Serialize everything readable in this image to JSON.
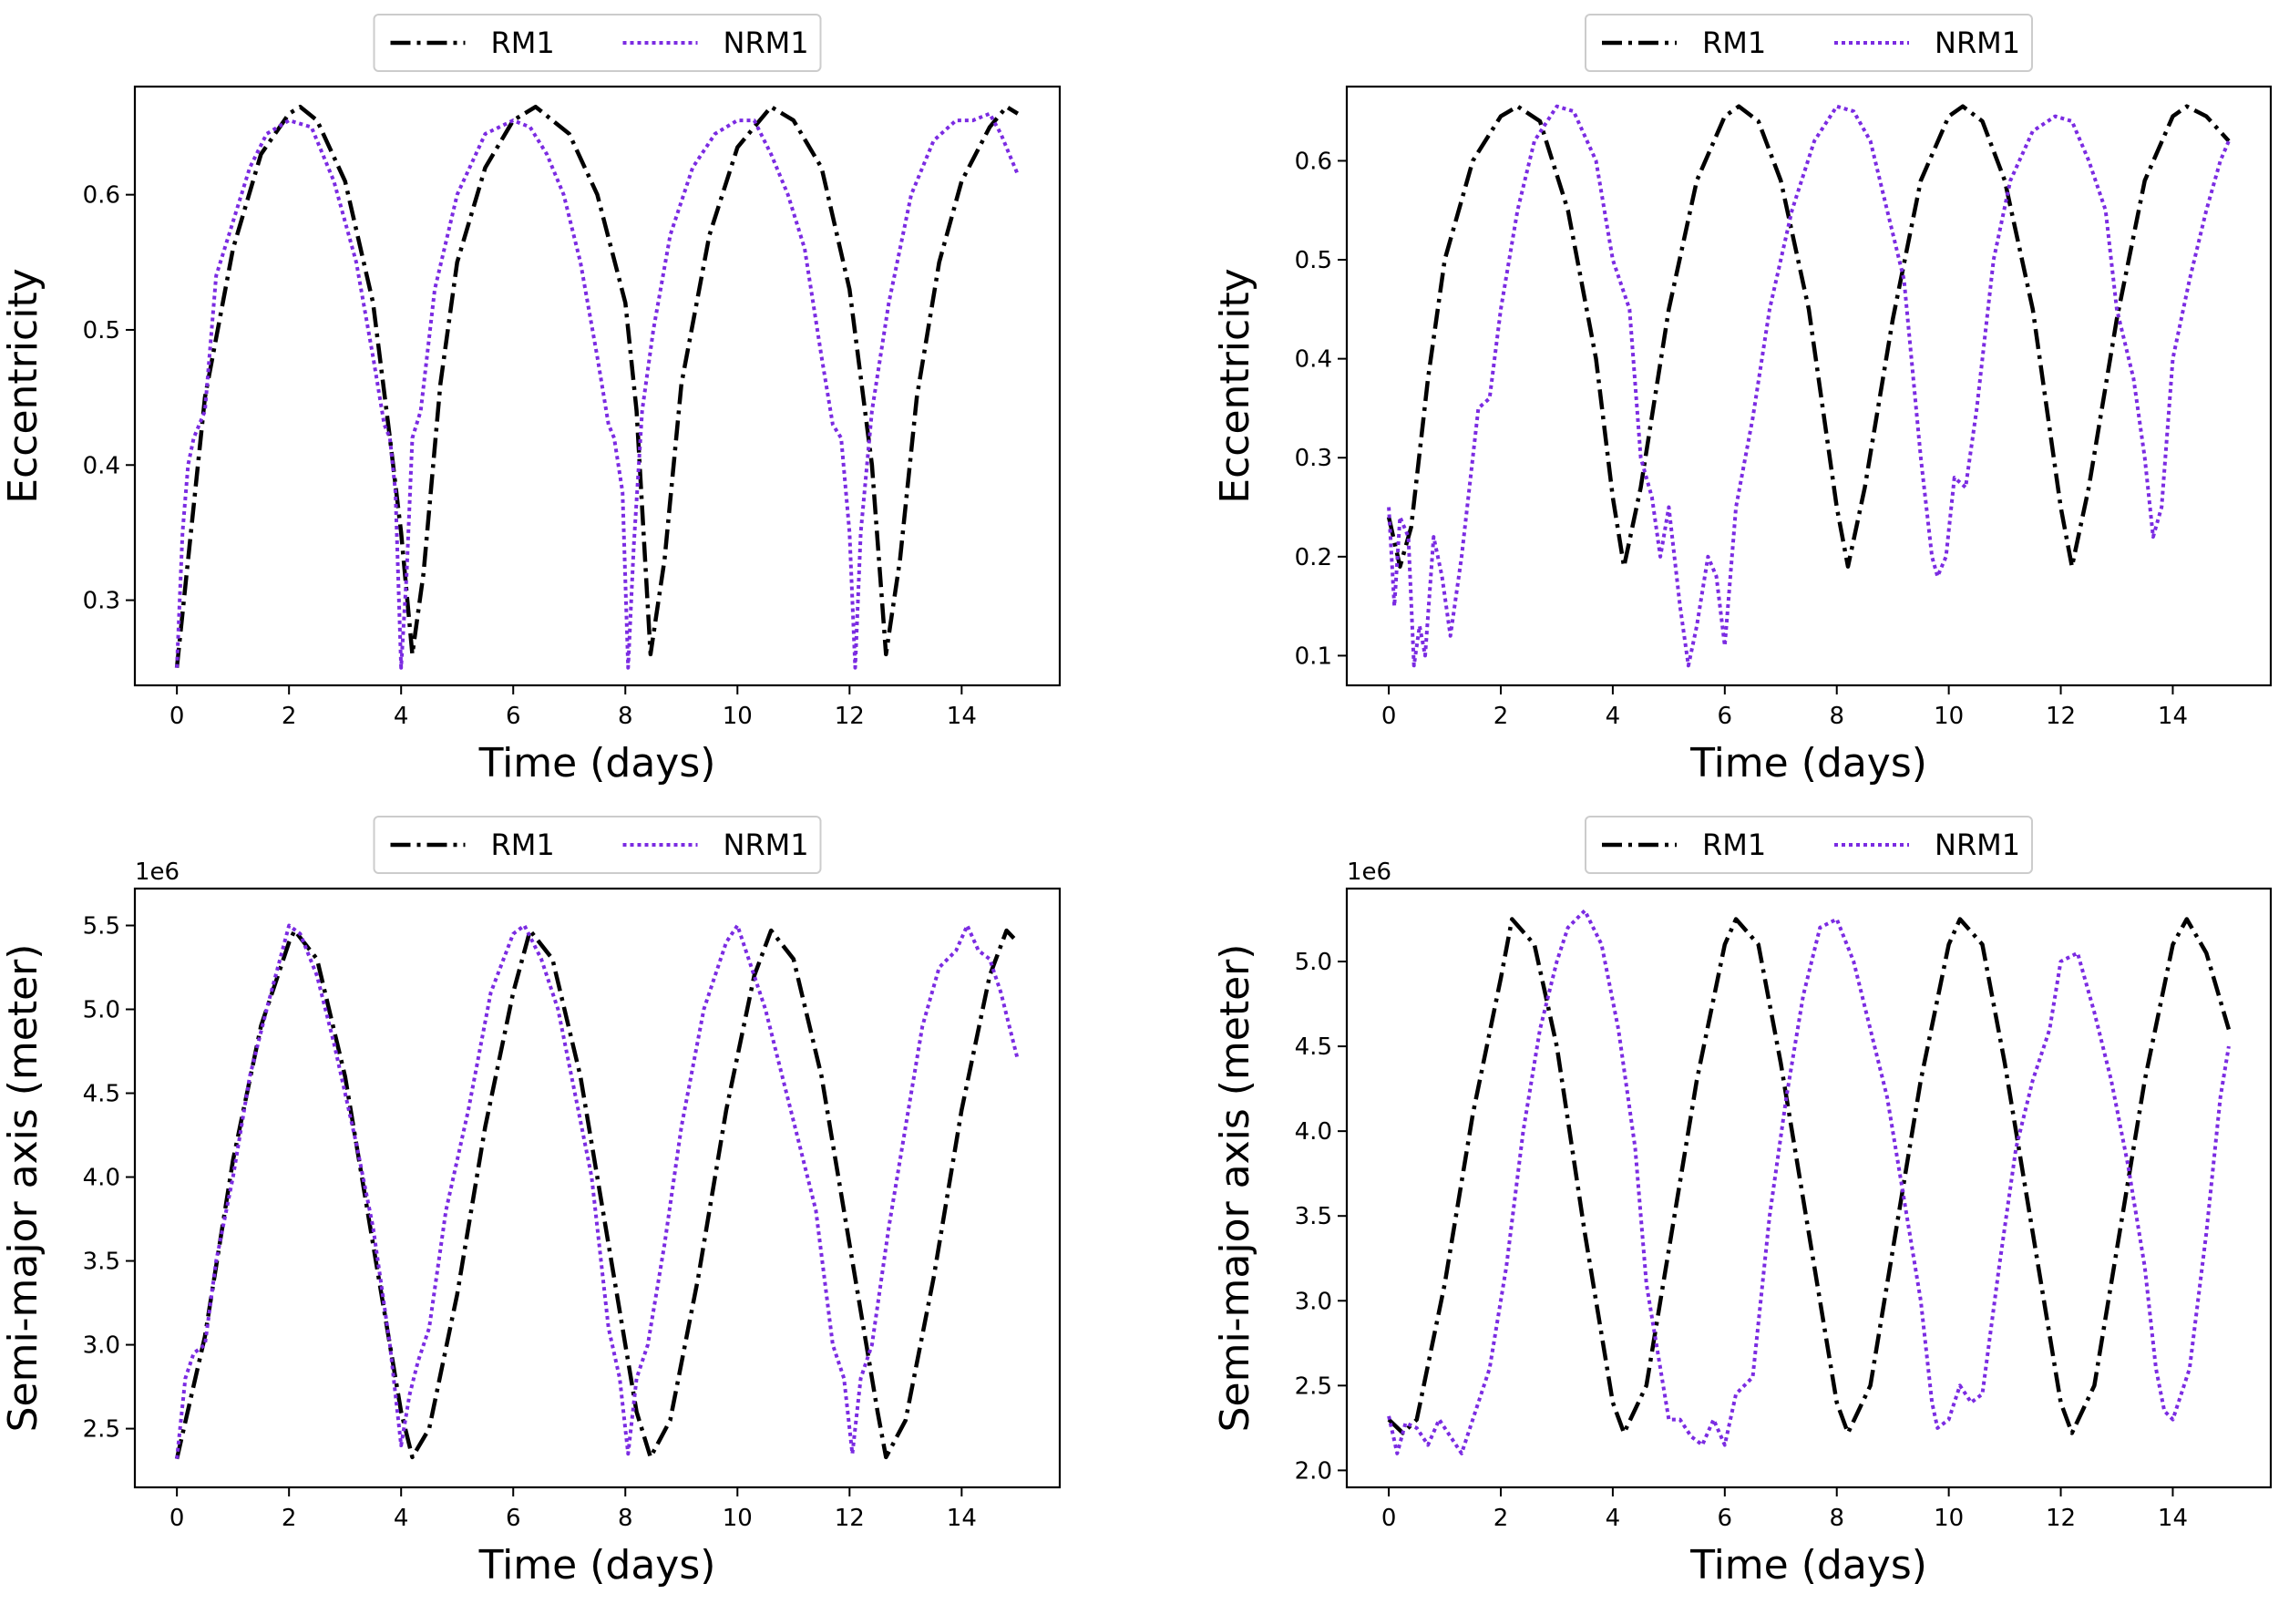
{
  "chart_data": [
    {
      "type": "line",
      "panel": "top-left",
      "xlabel": "Time (days)",
      "ylabel": "Eccentricity",
      "offset_text": "",
      "xlim": [
        -0.75,
        15.75
      ],
      "ylim": [
        0.237,
        0.68
      ],
      "xticks": [
        0,
        2,
        4,
        6,
        8,
        10,
        12,
        14
      ],
      "yticks": [
        0.3,
        0.4,
        0.5,
        0.6
      ],
      "ytick_labels": [
        "0.3",
        "0.4",
        "0.5",
        "0.6"
      ],
      "legend": {
        "position": "top-center-outside",
        "entries": [
          "RM1",
          "NRM1"
        ]
      },
      "series": [
        {
          "name": "RM1",
          "color": "#000000",
          "style": "dashdot",
          "x": [
            0,
            0.5,
            1,
            1.5,
            2,
            2.2,
            2.5,
            3,
            3.5,
            3.8,
            4,
            4.2,
            4.4,
            4.7,
            5,
            5.5,
            6,
            6.4,
            7,
            7.5,
            8,
            8.2,
            8.45,
            8.7,
            9,
            9.5,
            10,
            10.6,
            11,
            11.5,
            12,
            12.4,
            12.65,
            12.9,
            13.2,
            13.6,
            14,
            14.5,
            14.8,
            15
          ],
          "y": [
            0.25,
            0.45,
            0.56,
            0.63,
            0.66,
            0.665,
            0.655,
            0.61,
            0.52,
            0.42,
            0.35,
            0.26,
            0.32,
            0.46,
            0.55,
            0.62,
            0.655,
            0.665,
            0.645,
            0.6,
            0.52,
            0.44,
            0.26,
            0.33,
            0.46,
            0.57,
            0.635,
            0.665,
            0.655,
            0.62,
            0.53,
            0.4,
            0.26,
            0.33,
            0.45,
            0.55,
            0.61,
            0.65,
            0.665,
            0.66
          ]
        },
        {
          "name": "NRM1",
          "color": "#7b2be2",
          "style": "dotted",
          "x": [
            0,
            0.1,
            0.2,
            0.3,
            0.5,
            0.7,
            1,
            1.3,
            1.6,
            2,
            2.4,
            2.8,
            3.2,
            3.5,
            3.7,
            3.8,
            3.9,
            4,
            4.1,
            4.2,
            4.35,
            4.6,
            5,
            5.5,
            6,
            6.3,
            6.6,
            6.9,
            7.2,
            7.5,
            7.7,
            7.8,
            7.95,
            8.05,
            8.15,
            8.3,
            8.5,
            8.8,
            9.2,
            9.6,
            10,
            10.3,
            10.6,
            10.9,
            11.2,
            11.5,
            11.7,
            11.85,
            12,
            12.1,
            12.2,
            12.4,
            12.7,
            13.1,
            13.5,
            13.9,
            14.2,
            14.5,
            14.7,
            14.85,
            15
          ],
          "y": [
            0.25,
            0.35,
            0.4,
            0.42,
            0.44,
            0.54,
            0.58,
            0.62,
            0.645,
            0.655,
            0.65,
            0.61,
            0.55,
            0.48,
            0.43,
            0.42,
            0.38,
            0.25,
            0.32,
            0.42,
            0.44,
            0.53,
            0.6,
            0.645,
            0.655,
            0.65,
            0.63,
            0.6,
            0.55,
            0.48,
            0.43,
            0.42,
            0.38,
            0.25,
            0.34,
            0.44,
            0.5,
            0.57,
            0.62,
            0.645,
            0.655,
            0.655,
            0.63,
            0.6,
            0.56,
            0.48,
            0.43,
            0.42,
            0.35,
            0.25,
            0.35,
            0.44,
            0.52,
            0.6,
            0.64,
            0.655,
            0.655,
            0.66,
            0.645,
            0.63,
            0.615
          ]
        }
      ]
    },
    {
      "type": "line",
      "panel": "top-right",
      "xlabel": "Time (days)",
      "ylabel": "Eccentricity",
      "offset_text": "",
      "xlim": [
        -0.75,
        15.75
      ],
      "ylim": [
        0.07,
        0.675
      ],
      "xticks": [
        0,
        2,
        4,
        6,
        8,
        10,
        12,
        14
      ],
      "yticks": [
        0.1,
        0.2,
        0.3,
        0.4,
        0.5,
        0.6
      ],
      "ytick_labels": [
        "0.1",
        "0.2",
        "0.3",
        "0.4",
        "0.5",
        "0.6"
      ],
      "legend": {
        "position": "top-center-outside",
        "entries": [
          "RM1",
          "NRM1"
        ]
      },
      "series": [
        {
          "name": "RM1",
          "color": "#000000",
          "style": "dashdot",
          "x": [
            0,
            0.2,
            0.4,
            0.7,
            1,
            1.5,
            2,
            2.3,
            2.7,
            3.2,
            3.7,
            4,
            4.2,
            4.5,
            5,
            5.5,
            6,
            6.25,
            6.6,
            7,
            7.5,
            8,
            8.2,
            8.5,
            9,
            9.5,
            10,
            10.25,
            10.6,
            11,
            11.5,
            12,
            12.2,
            12.5,
            13,
            13.5,
            14,
            14.25,
            14.6,
            15
          ],
          "y": [
            0.24,
            0.19,
            0.23,
            0.38,
            0.5,
            0.6,
            0.645,
            0.655,
            0.64,
            0.55,
            0.4,
            0.26,
            0.19,
            0.27,
            0.45,
            0.58,
            0.645,
            0.655,
            0.64,
            0.58,
            0.45,
            0.25,
            0.19,
            0.27,
            0.44,
            0.58,
            0.645,
            0.655,
            0.64,
            0.58,
            0.45,
            0.25,
            0.19,
            0.27,
            0.44,
            0.58,
            0.645,
            0.655,
            0.645,
            0.62
          ]
        },
        {
          "name": "NRM1",
          "color": "#7b2be2",
          "style": "dotted",
          "x": [
            0,
            0.1,
            0.2,
            0.35,
            0.45,
            0.55,
            0.65,
            0.8,
            0.95,
            1.1,
            1.3,
            1.6,
            1.8,
            2.0,
            2.3,
            2.6,
            3.0,
            3.3,
            3.7,
            4.0,
            4.3,
            4.5,
            4.7,
            4.85,
            5.0,
            5.2,
            5.35,
            5.5,
            5.7,
            5.85,
            6.0,
            6.2,
            6.5,
            6.8,
            7.2,
            7.6,
            8.0,
            8.3,
            8.6,
            8.9,
            9.2,
            9.5,
            9.7,
            9.8,
            9.95,
            10.1,
            10.3,
            10.5,
            10.8,
            11.1,
            11.5,
            11.9,
            12.2,
            12.5,
            12.8,
            13.0,
            13.3,
            13.5,
            13.65,
            13.8,
            14.0,
            14.3,
            14.6,
            14.85,
            15.0
          ],
          "y": [
            0.25,
            0.15,
            0.24,
            0.22,
            0.09,
            0.13,
            0.1,
            0.22,
            0.18,
            0.12,
            0.2,
            0.35,
            0.36,
            0.45,
            0.55,
            0.62,
            0.655,
            0.65,
            0.6,
            0.5,
            0.45,
            0.3,
            0.26,
            0.2,
            0.25,
            0.15,
            0.09,
            0.13,
            0.2,
            0.18,
            0.11,
            0.25,
            0.34,
            0.45,
            0.55,
            0.62,
            0.655,
            0.65,
            0.62,
            0.55,
            0.48,
            0.3,
            0.2,
            0.18,
            0.2,
            0.28,
            0.27,
            0.35,
            0.5,
            0.58,
            0.63,
            0.645,
            0.64,
            0.6,
            0.55,
            0.45,
            0.38,
            0.3,
            0.22,
            0.25,
            0.4,
            0.48,
            0.55,
            0.6,
            0.62
          ]
        }
      ]
    },
    {
      "type": "line",
      "panel": "bottom-left",
      "xlabel": "Time (days)",
      "ylabel": "Semi-major axis (meter)",
      "offset_text": "1e6",
      "xlim": [
        -0.75,
        15.75
      ],
      "ylim": [
        2.15,
        5.72
      ],
      "xticks": [
        0,
        2,
        4,
        6,
        8,
        10,
        12,
        14
      ],
      "yticks": [
        2.5,
        3.0,
        3.5,
        4.0,
        4.5,
        5.0,
        5.5
      ],
      "ytick_labels": [
        "2.5",
        "3.0",
        "3.5",
        "4.0",
        "4.5",
        "5.0",
        "5.5"
      ],
      "legend": {
        "position": "top-center-outside",
        "entries": [
          "RM1",
          "NRM1"
        ]
      },
      "series": [
        {
          "name": "RM1",
          "color": "#000000",
          "style": "dashdot",
          "x": [
            0,
            0.5,
            1,
            1.5,
            2,
            2.1,
            2.5,
            3,
            3.5,
            4,
            4.2,
            4.5,
            5,
            5.5,
            6,
            6.3,
            6.7,
            7.2,
            7.7,
            8.2,
            8.45,
            8.8,
            9.3,
            9.8,
            10.3,
            10.6,
            11,
            11.5,
            12,
            12.5,
            12.65,
            13,
            13.5,
            14,
            14.5,
            14.8,
            15
          ],
          "y": [
            2.32,
            3.05,
            4.1,
            4.9,
            5.4,
            5.47,
            5.3,
            4.6,
            3.6,
            2.6,
            2.33,
            2.5,
            3.3,
            4.3,
            5.1,
            5.47,
            5.3,
            4.6,
            3.6,
            2.6,
            2.33,
            2.55,
            3.4,
            4.4,
            5.2,
            5.47,
            5.3,
            4.6,
            3.6,
            2.6,
            2.33,
            2.55,
            3.4,
            4.4,
            5.2,
            5.47,
            5.4
          ]
        },
        {
          "name": "NRM1",
          "color": "#7b2be2",
          "style": "dotted",
          "x": [
            0,
            0.15,
            0.3,
            0.5,
            0.7,
            1.0,
            1.3,
            1.6,
            2.0,
            2.2,
            2.5,
            2.8,
            3.2,
            3.5,
            3.8,
            4.0,
            4.15,
            4.3,
            4.5,
            4.8,
            5.2,
            5.6,
            6.0,
            6.2,
            6.5,
            6.8,
            7.1,
            7.4,
            7.7,
            7.9,
            8.05,
            8.2,
            8.4,
            8.7,
            9.0,
            9.4,
            9.8,
            10.0,
            10.2,
            10.5,
            10.8,
            11.1,
            11.4,
            11.7,
            11.9,
            12.05,
            12.2,
            12.4,
            12.7,
            13.0,
            13.3,
            13.6,
            13.9,
            14.1,
            14.3,
            14.5,
            14.7,
            14.85,
            15.0
          ],
          "y": [
            2.32,
            2.8,
            2.95,
            3.0,
            3.5,
            4.0,
            4.6,
            5.0,
            5.5,
            5.45,
            5.2,
            4.8,
            4.2,
            3.7,
            3.0,
            2.4,
            2.7,
            2.9,
            3.1,
            3.8,
            4.4,
            5.1,
            5.45,
            5.5,
            5.3,
            5.0,
            4.5,
            4.0,
            3.1,
            2.8,
            2.35,
            2.8,
            3.0,
            3.6,
            4.3,
            5.0,
            5.4,
            5.5,
            5.3,
            5.0,
            4.6,
            4.2,
            3.8,
            3.0,
            2.8,
            2.35,
            2.8,
            3.0,
            3.7,
            4.3,
            4.9,
            5.25,
            5.35,
            5.5,
            5.35,
            5.3,
            5.1,
            4.9,
            4.7
          ]
        }
      ]
    },
    {
      "type": "line",
      "panel": "bottom-right",
      "xlabel": "Time (days)",
      "ylabel": "Semi-major axis (meter)",
      "offset_text": "1e6",
      "xlim": [
        -0.75,
        15.75
      ],
      "ylim": [
        1.9,
        5.43
      ],
      "xticks": [
        0,
        2,
        4,
        6,
        8,
        10,
        12,
        14
      ],
      "yticks": [
        2.0,
        2.5,
        3.0,
        3.5,
        4.0,
        4.5,
        5.0
      ],
      "ytick_labels": [
        "2.0",
        "2.5",
        "3.0",
        "3.5",
        "4.0",
        "4.5",
        "5.0"
      ],
      "legend": {
        "position": "top-center-outside",
        "entries": [
          "RM1",
          "NRM1"
        ]
      },
      "series": [
        {
          "name": "RM1",
          "color": "#000000",
          "style": "dashdot",
          "x": [
            0,
            0.25,
            0.5,
            1,
            1.5,
            2,
            2.2,
            2.6,
            3,
            3.5,
            4,
            4.2,
            4.6,
            5,
            5.5,
            6,
            6.2,
            6.6,
            7,
            7.5,
            8,
            8.2,
            8.6,
            9,
            9.5,
            10,
            10.2,
            10.6,
            11,
            11.5,
            12,
            12.2,
            12.6,
            13,
            13.5,
            14,
            14.25,
            14.6,
            15
          ],
          "y": [
            2.3,
            2.22,
            2.3,
            3.1,
            4.1,
            4.9,
            5.25,
            5.1,
            4.5,
            3.4,
            2.4,
            2.22,
            2.5,
            3.3,
            4.3,
            5.1,
            5.25,
            5.1,
            4.4,
            3.4,
            2.4,
            2.22,
            2.5,
            3.3,
            4.3,
            5.1,
            5.25,
            5.1,
            4.4,
            3.4,
            2.4,
            2.22,
            2.5,
            3.3,
            4.3,
            5.1,
            5.25,
            5.05,
            4.6
          ]
        },
        {
          "name": "NRM1",
          "color": "#7b2be2",
          "style": "dotted",
          "x": [
            0,
            0.15,
            0.3,
            0.5,
            0.7,
            0.9,
            1.1,
            1.3,
            1.6,
            1.8,
            2.1,
            2.4,
            2.7,
            3.0,
            3.2,
            3.5,
            3.8,
            4.1,
            4.4,
            4.6,
            4.8,
            5.0,
            5.2,
            5.4,
            5.6,
            5.8,
            6.0,
            6.2,
            6.5,
            6.8,
            7.1,
            7.4,
            7.7,
            8.0,
            8.3,
            8.6,
            8.9,
            9.2,
            9.5,
            9.7,
            9.8,
            10.0,
            10.2,
            10.4,
            10.6,
            10.9,
            11.2,
            11.5,
            11.8,
            12.0,
            12.3,
            12.6,
            12.9,
            13.2,
            13.5,
            13.7,
            13.85,
            14.0,
            14.3,
            14.6,
            14.85,
            15.0
          ],
          "y": [
            2.32,
            2.1,
            2.28,
            2.25,
            2.15,
            2.3,
            2.2,
            2.1,
            2.4,
            2.6,
            3.2,
            4.0,
            4.6,
            5.0,
            5.2,
            5.3,
            5.1,
            4.6,
            3.9,
            3.1,
            2.7,
            2.3,
            2.3,
            2.2,
            2.15,
            2.3,
            2.15,
            2.45,
            2.55,
            3.5,
            4.2,
            4.8,
            5.2,
            5.25,
            5.0,
            4.6,
            4.2,
            3.6,
            3.0,
            2.4,
            2.25,
            2.3,
            2.5,
            2.4,
            2.45,
            3.2,
            3.9,
            4.3,
            4.6,
            5.0,
            5.05,
            4.7,
            4.3,
            3.8,
            3.2,
            2.6,
            2.35,
            2.3,
            2.6,
            3.4,
            4.2,
            4.5
          ]
        }
      ]
    }
  ]
}
